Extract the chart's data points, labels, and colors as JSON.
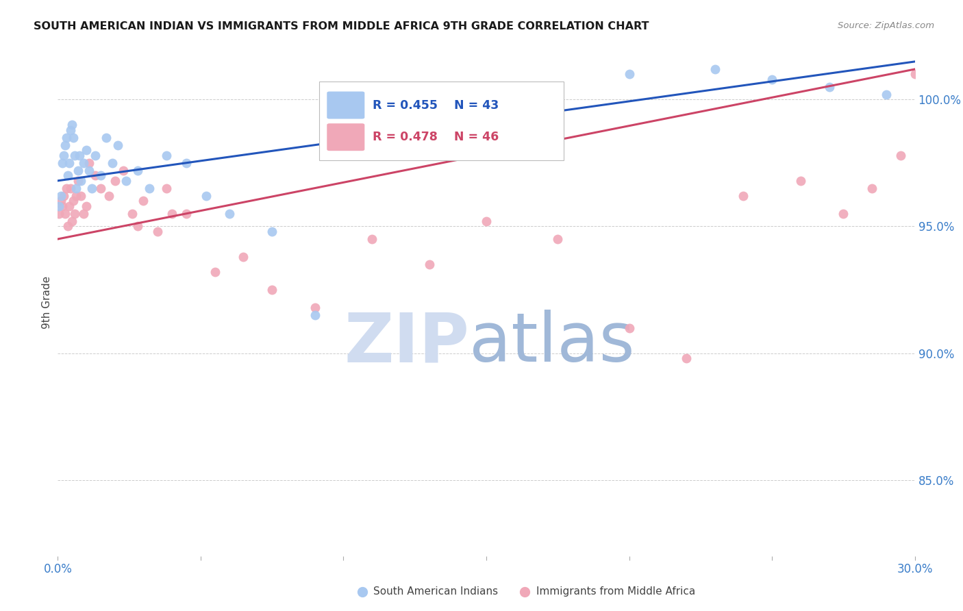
{
  "title": "SOUTH AMERICAN INDIAN VS IMMIGRANTS FROM MIDDLE AFRICA 9TH GRADE CORRELATION CHART",
  "source": "Source: ZipAtlas.com",
  "ylabel": "9th Grade",
  "xlim": [
    0.0,
    30.0
  ],
  "ylim": [
    82.0,
    102.0
  ],
  "yticks": [
    85.0,
    90.0,
    95.0,
    100.0
  ],
  "ytick_labels": [
    "85.0%",
    "90.0%",
    "95.0%",
    "100.0%"
  ],
  "blue_label": "South American Indians",
  "pink_label": "Immigrants from Middle Africa",
  "legend_blue_R": "R = 0.455",
  "legend_blue_N": "N = 43",
  "legend_pink_R": "R = 0.478",
  "legend_pink_N": "N = 46",
  "blue_color": "#A8C8F0",
  "pink_color": "#F0A8B8",
  "blue_line_color": "#2255BB",
  "pink_line_color": "#CC4466",
  "watermark_ZIP_color": "#D0DCF0",
  "watermark_atlas_color": "#A0B8D8",
  "blue_scatter_x": [
    0.05,
    0.1,
    0.15,
    0.2,
    0.25,
    0.3,
    0.35,
    0.4,
    0.45,
    0.5,
    0.55,
    0.6,
    0.65,
    0.7,
    0.75,
    0.8,
    0.9,
    1.0,
    1.1,
    1.2,
    1.3,
    1.5,
    1.7,
    1.9,
    2.1,
    2.4,
    2.8,
    3.2,
    3.8,
    4.5,
    5.2,
    6.0,
    7.5,
    9.0,
    11.0,
    13.0,
    15.0,
    17.0,
    20.0,
    23.0,
    25.0,
    27.0,
    29.0
  ],
  "blue_scatter_y": [
    95.8,
    96.2,
    97.5,
    97.8,
    98.2,
    98.5,
    97.0,
    97.5,
    98.8,
    99.0,
    98.5,
    97.8,
    96.5,
    97.2,
    97.8,
    96.8,
    97.5,
    98.0,
    97.2,
    96.5,
    97.8,
    97.0,
    98.5,
    97.5,
    98.2,
    96.8,
    97.2,
    96.5,
    97.8,
    97.5,
    96.2,
    95.5,
    94.8,
    91.5,
    98.0,
    99.5,
    99.8,
    100.5,
    101.0,
    101.2,
    100.8,
    100.5,
    100.2
  ],
  "pink_scatter_x": [
    0.05,
    0.1,
    0.15,
    0.2,
    0.25,
    0.3,
    0.35,
    0.4,
    0.45,
    0.5,
    0.55,
    0.6,
    0.65,
    0.7,
    0.8,
    0.9,
    1.0,
    1.1,
    1.3,
    1.5,
    1.8,
    2.0,
    2.3,
    2.6,
    3.0,
    3.5,
    4.0,
    4.5,
    5.5,
    6.5,
    7.5,
    9.0,
    11.0,
    13.0,
    15.0,
    17.5,
    20.0,
    22.0,
    24.0,
    26.0,
    27.5,
    28.5,
    29.5,
    30.0,
    2.8,
    3.8
  ],
  "pink_scatter_y": [
    95.5,
    96.0,
    95.8,
    96.2,
    95.5,
    96.5,
    95.0,
    95.8,
    96.5,
    95.2,
    96.0,
    95.5,
    96.2,
    96.8,
    96.2,
    95.5,
    95.8,
    97.5,
    97.0,
    96.5,
    96.2,
    96.8,
    97.2,
    95.5,
    96.0,
    94.8,
    95.5,
    95.5,
    93.2,
    93.8,
    92.5,
    91.8,
    94.5,
    93.5,
    95.2,
    94.5,
    91.0,
    89.8,
    96.2,
    96.8,
    95.5,
    96.5,
    97.8,
    101.0,
    95.0,
    96.5
  ]
}
